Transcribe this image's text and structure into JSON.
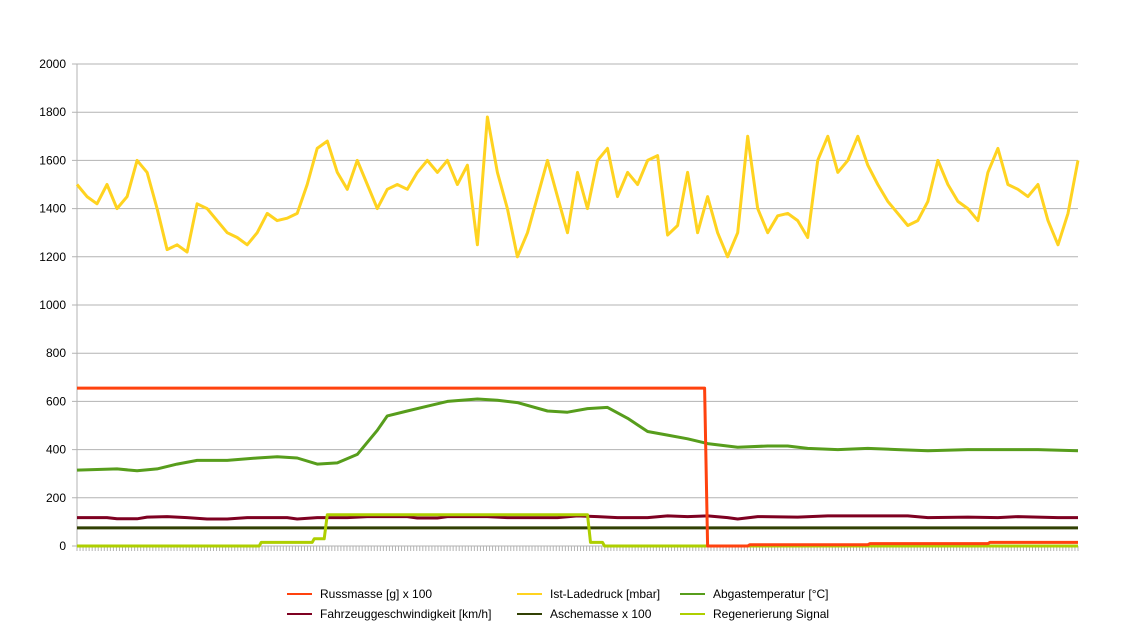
{
  "chart_data": {
    "type": "line",
    "title": "",
    "xlabel": "",
    "ylabel": "",
    "xlim": [
      0,
      100
    ],
    "ylim": [
      0,
      2000
    ],
    "y_ticks": [
      0,
      200,
      400,
      600,
      800,
      1000,
      1200,
      1400,
      1600,
      1800,
      2000
    ],
    "x_tick_count": 330,
    "grid": true,
    "legend_position": "bottom",
    "series": [
      {
        "name": "Russmasse [g] x 100",
        "color": "#ff420e",
        "points": [
          [
            0,
            655
          ],
          [
            62.7,
            655
          ],
          [
            63,
            0
          ],
          [
            67,
            0
          ],
          [
            67.2,
            5
          ],
          [
            79,
            5
          ],
          [
            79.2,
            10
          ],
          [
            91,
            10
          ],
          [
            91.2,
            15
          ],
          [
            100,
            15
          ]
        ]
      },
      {
        "name": "Ist-Ladedruck [mbar]",
        "color": "#ffd320",
        "values": [
          1500,
          1450,
          1420,
          1500,
          1400,
          1450,
          1600,
          1550,
          1400,
          1230,
          1250,
          1220,
          1420,
          1400,
          1350,
          1300,
          1280,
          1250,
          1300,
          1380,
          1350,
          1360,
          1380,
          1500,
          1650,
          1680,
          1550,
          1480,
          1600,
          1500,
          1400,
          1480,
          1500,
          1480,
          1550,
          1600,
          1550,
          1600,
          1500,
          1580,
          1250,
          1780,
          1550,
          1400,
          1200,
          1300,
          1450,
          1600,
          1450,
          1300,
          1550,
          1400,
          1600,
          1650,
          1450,
          1550,
          1500,
          1600,
          1620,
          1290,
          1330,
          1550,
          1300,
          1450,
          1300,
          1200,
          1300,
          1700,
          1400,
          1300,
          1370,
          1380,
          1350,
          1280,
          1600,
          1700,
          1550,
          1600,
          1700,
          1580,
          1500,
          1430,
          1380,
          1330,
          1350,
          1430,
          1600,
          1500,
          1430,
          1400,
          1350,
          1550,
          1650,
          1500,
          1480,
          1450,
          1500,
          1350,
          1250,
          1380,
          1600
        ]
      },
      {
        "name": "Abgastemperatur [°C]",
        "color": "#579d1c",
        "points": [
          [
            0,
            315
          ],
          [
            4,
            320
          ],
          [
            6,
            312
          ],
          [
            8,
            320
          ],
          [
            10,
            340
          ],
          [
            12,
            355
          ],
          [
            15,
            355
          ],
          [
            18,
            365
          ],
          [
            20,
            370
          ],
          [
            22,
            365
          ],
          [
            24,
            340
          ],
          [
            26,
            345
          ],
          [
            28,
            380
          ],
          [
            30,
            480
          ],
          [
            31,
            540
          ],
          [
            33,
            560
          ],
          [
            35,
            580
          ],
          [
            37,
            600
          ],
          [
            40,
            610
          ],
          [
            42,
            605
          ],
          [
            44,
            595
          ],
          [
            47,
            560
          ],
          [
            49,
            555
          ],
          [
            51,
            570
          ],
          [
            53,
            575
          ],
          [
            55,
            530
          ],
          [
            57,
            475
          ],
          [
            59,
            460
          ],
          [
            61,
            445
          ],
          [
            63,
            425
          ],
          [
            66,
            410
          ],
          [
            69,
            415
          ],
          [
            71,
            415
          ],
          [
            73,
            405
          ],
          [
            76,
            400
          ],
          [
            79,
            405
          ],
          [
            82,
            400
          ],
          [
            85,
            395
          ],
          [
            89,
            400
          ],
          [
            93,
            400
          ],
          [
            96,
            400
          ],
          [
            100,
            395
          ]
        ]
      },
      {
        "name": "Fahrzeuggeschwindigkeit [km/h]",
        "color": "#7e0021",
        "points": [
          [
            0,
            118
          ],
          [
            3,
            118
          ],
          [
            4,
            113
          ],
          [
            6,
            113
          ],
          [
            7,
            120
          ],
          [
            9,
            122
          ],
          [
            11,
            118
          ],
          [
            13,
            112
          ],
          [
            15,
            112
          ],
          [
            17,
            118
          ],
          [
            21,
            118
          ],
          [
            22,
            112
          ],
          [
            24,
            118
          ],
          [
            27,
            118
          ],
          [
            29,
            122
          ],
          [
            33,
            122
          ],
          [
            34,
            116
          ],
          [
            36,
            116
          ],
          [
            37,
            122
          ],
          [
            41,
            122
          ],
          [
            43,
            118
          ],
          [
            48,
            118
          ],
          [
            50,
            125
          ],
          [
            52,
            122
          ],
          [
            54,
            118
          ],
          [
            57,
            118
          ],
          [
            59,
            125
          ],
          [
            61,
            122
          ],
          [
            63,
            125
          ],
          [
            65,
            118
          ],
          [
            66,
            112
          ],
          [
            68,
            122
          ],
          [
            72,
            120
          ],
          [
            75,
            125
          ],
          [
            83,
            125
          ],
          [
            85,
            118
          ],
          [
            89,
            120
          ],
          [
            92,
            118
          ],
          [
            94,
            122
          ],
          [
            98,
            118
          ],
          [
            100,
            118
          ]
        ]
      },
      {
        "name": "Aschemasse x 100",
        "color": "#314004",
        "points": [
          [
            0,
            75
          ],
          [
            100,
            75
          ]
        ]
      },
      {
        "name": "Regenerierung Signal",
        "color": "#aecf00",
        "points": [
          [
            0,
            0
          ],
          [
            18.2,
            0
          ],
          [
            18.4,
            15
          ],
          [
            23.5,
            15
          ],
          [
            23.7,
            30
          ],
          [
            24.7,
            30
          ],
          [
            25,
            130
          ],
          [
            51,
            130
          ],
          [
            51.3,
            15
          ],
          [
            52.5,
            15
          ],
          [
            52.7,
            0
          ],
          [
            100,
            0
          ]
        ]
      }
    ]
  }
}
